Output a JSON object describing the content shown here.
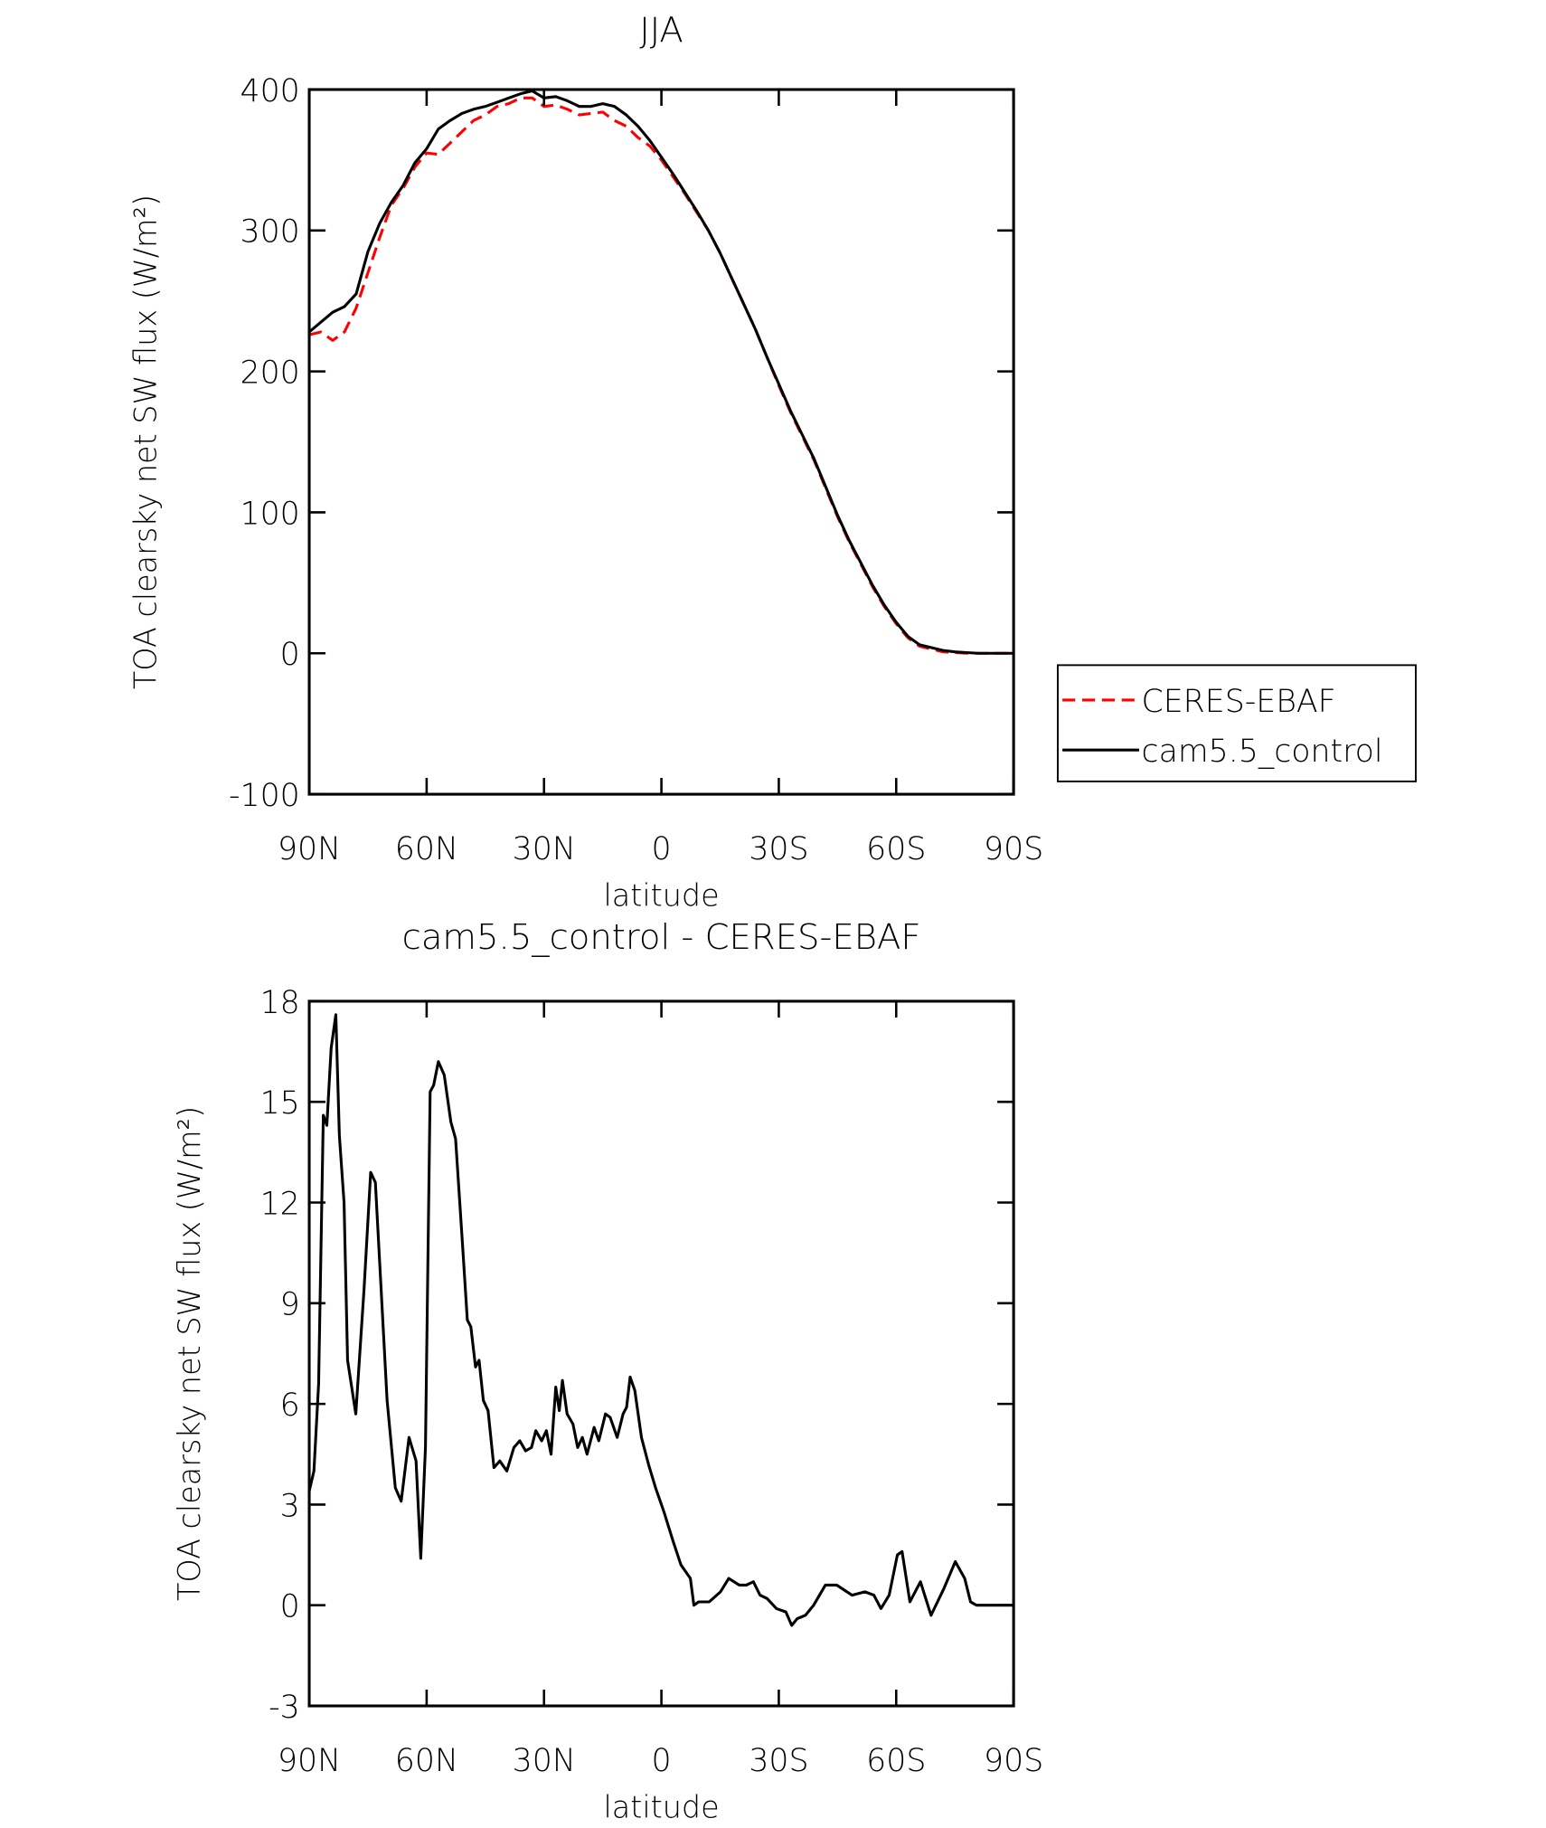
{
  "chart_data": [
    {
      "type": "line",
      "title": "JJA",
      "xlabel": "latitude",
      "ylabel": "TOA clearsky net SW flux (W/m²)",
      "xlim": [
        90,
        -90
      ],
      "ylim": [
        -100,
        400
      ],
      "xticks": [
        {
          "value": 90,
          "label": "90N"
        },
        {
          "value": 60,
          "label": "60N"
        },
        {
          "value": 30,
          "label": "30N"
        },
        0,
        {
          "value": -30,
          "label": "30S"
        },
        {
          "value": -60,
          "label": "60S"
        },
        {
          "value": -90,
          "label": "90S"
        }
      ],
      "yticks": [
        -100,
        0,
        100,
        200,
        300,
        400
      ],
      "legend": "right",
      "x": [
        90,
        87,
        84,
        81,
        78,
        75,
        72,
        69,
        66,
        63,
        60,
        57,
        54,
        51,
        48,
        45,
        42,
        39,
        36,
        33,
        30,
        27,
        24,
        21,
        18,
        15,
        12,
        9,
        6,
        3,
        0,
        -3,
        -6,
        -9,
        -12,
        -15,
        -18,
        -21,
        -24,
        -27,
        -30,
        -33,
        -36,
        -39,
        -42,
        -45,
        -48,
        -51,
        -54,
        -57,
        -60,
        -63,
        -66,
        -69,
        -72,
        -75,
        -78,
        -81,
        -84,
        -87,
        -90
      ],
      "series": [
        {
          "name": "CERES-EBAF",
          "color": "#ff0000",
          "dashed": true,
          "values": [
            226,
            228,
            222,
            228,
            245,
            270,
            295,
            318,
            330,
            345,
            355,
            354,
            362,
            370,
            378,
            382,
            388,
            390,
            394,
            394,
            388,
            389,
            386,
            382,
            383,
            384,
            378,
            374,
            366,
            360,
            350,
            338,
            326,
            313,
            300,
            284,
            266,
            248,
            230,
            210,
            190,
            171,
            154,
            137,
            117,
            97,
            79,
            63,
            47,
            33,
            21,
            11,
            5,
            3,
            1,
            0.5,
            0,
            0,
            0,
            0,
            0
          ]
        },
        {
          "name": "cam5.5_control",
          "color": "#000000",
          "dashed": false,
          "values": [
            228,
            235,
            242,
            246,
            255,
            285,
            305,
            320,
            332,
            348,
            358,
            372,
            378,
            383,
            386,
            388,
            391,
            394,
            397,
            399,
            394,
            395,
            392,
            388,
            388,
            390,
            388,
            382,
            374,
            364,
            352,
            340,
            327,
            314,
            300,
            284,
            266,
            248,
            230,
            210,
            191,
            172,
            155,
            138,
            118,
            98,
            80,
            64,
            48,
            34,
            22,
            12,
            6,
            4,
            2,
            1,
            0.5,
            0,
            0,
            0,
            0
          ]
        }
      ]
    },
    {
      "type": "line",
      "title": "cam5.5_control - CERES-EBAF",
      "xlabel": "latitude",
      "ylabel": "TOA clearsky net SW flux (W/m²)",
      "xlim": [
        90,
        -90
      ],
      "ylim": [
        -3,
        18
      ],
      "xticks": [
        {
          "value": 90,
          "label": "90N"
        },
        {
          "value": 60,
          "label": "60N"
        },
        {
          "value": 30,
          "label": "30N"
        },
        0,
        {
          "value": -30,
          "label": "30S"
        },
        {
          "value": -60,
          "label": "60S"
        },
        {
          "value": -90,
          "label": "90S"
        }
      ],
      "yticks": [
        -3,
        0,
        3,
        6,
        9,
        12,
        15,
        18
      ],
      "color": "#000000",
      "x": [
        90,
        88.8,
        87.6,
        86.4,
        85.5,
        84.4,
        83.2,
        82.3,
        81.1,
        80.2,
        78.1,
        76.0,
        74.3,
        73.1,
        71.9,
        70.1,
        68.0,
        66.5,
        64.5,
        62.7,
        61.5,
        60.3,
        59.1,
        58.2,
        57.0,
        55.5,
        53.8,
        52.6,
        50.8,
        49.6,
        48.7,
        47.5,
        46.6,
        45.5,
        44.3,
        42.8,
        41.3,
        39.5,
        37.7,
        36.2,
        34.7,
        33.2,
        32.1,
        30.6,
        29.4,
        28.2,
        27.0,
        26.1,
        25.3,
        24.1,
        22.6,
        21.4,
        20.2,
        19.0,
        17.2,
        16.0,
        14.3,
        13.1,
        11.3,
        9.8,
        8.9,
        8.0,
        6.8,
        5.1,
        3.3,
        1.5,
        -0.6,
        -3.0,
        -5.0,
        -7.4,
        -8.3,
        -9.5,
        -12.2,
        -15.1,
        -17.2,
        -19.9,
        -21.7,
        -23.5,
        -25.2,
        -27.0,
        -29.4,
        -31.8,
        -33.3,
        -34.7,
        -36.8,
        -38.9,
        -41.9,
        -44.8,
        -48.7,
        -52.0,
        -54.3,
        -56.1,
        -58.2,
        -60.3,
        -61.5,
        -63.5,
        -66.2,
        -68.9,
        -72.2,
        -75.1,
        -77.5,
        -79.0,
        -80.5,
        -90
      ],
      "values": [
        3.4,
        4.0,
        6.6,
        14.6,
        14.3,
        16.6,
        17.6,
        14.0,
        12.0,
        7.3,
        5.7,
        9.4,
        12.9,
        12.6,
        10.0,
        6.1,
        3.5,
        3.1,
        5.0,
        4.3,
        1.4,
        4.7,
        15.3,
        15.5,
        16.2,
        15.8,
        14.4,
        13.9,
        10.7,
        8.5,
        8.3,
        7.1,
        7.3,
        6.1,
        5.8,
        4.1,
        4.3,
        4.0,
        4.7,
        4.9,
        4.6,
        4.7,
        5.2,
        4.9,
        5.2,
        4.5,
        6.5,
        5.8,
        6.7,
        5.7,
        5.4,
        4.7,
        5.0,
        4.5,
        5.3,
        4.9,
        5.7,
        5.6,
        5.0,
        5.7,
        5.9,
        6.8,
        6.4,
        5.0,
        4.2,
        3.5,
        2.8,
        1.9,
        1.2,
        0.8,
        0.0,
        0.1,
        0.1,
        0.4,
        0.8,
        0.6,
        0.6,
        0.7,
        0.3,
        0.2,
        -0.1,
        -0.2,
        -0.6,
        -0.4,
        -0.3,
        0.0,
        0.6,
        0.6,
        0.3,
        0.4,
        0.3,
        -0.1,
        0.3,
        1.5,
        1.6,
        0.1,
        0.7,
        -0.3,
        0.5,
        1.3,
        0.8,
        0.1,
        0,
        0
      ]
    }
  ]
}
